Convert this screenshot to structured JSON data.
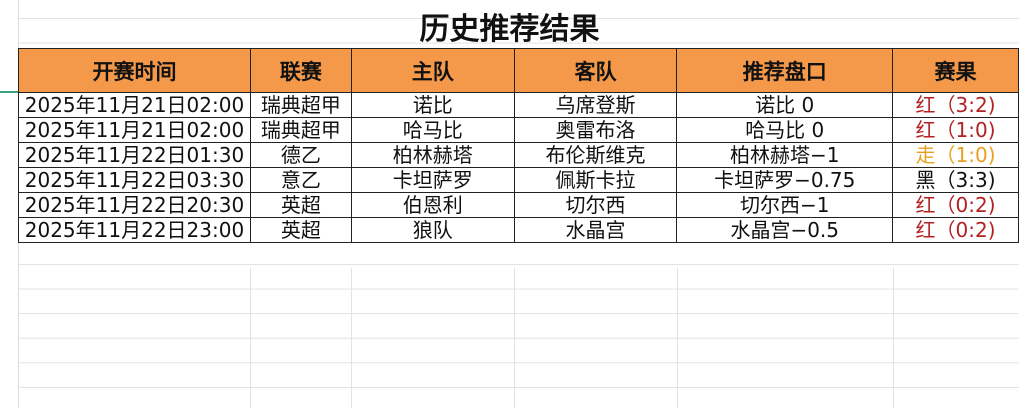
{
  "title": "历史推荐结果",
  "headers": [
    "开赛时间",
    "联赛",
    "主队",
    "客队",
    "推荐盘口",
    "赛果"
  ],
  "colors": {
    "header_bg": "#f4994a",
    "red": "#b22222",
    "push": "#e8a020",
    "black": "#111111"
  },
  "rows": [
    {
      "time": "2025年11月21日02:00",
      "league": "瑞典超甲",
      "home": "诺比",
      "away": "乌席登斯",
      "pick": "诺比 0",
      "result": "红（3:2)",
      "status": "red"
    },
    {
      "time": "2025年11月21日02:00",
      "league": "瑞典超甲",
      "home": "哈马比",
      "away": "奥雷布洛",
      "pick": "哈马比 0",
      "result": "红（1:0)",
      "status": "red"
    },
    {
      "time": "2025年11月22日01:30",
      "league": "德乙",
      "home": "柏林赫塔",
      "away": "布伦斯维克",
      "pick": "柏林赫塔−1",
      "result": "走（1:0)",
      "status": "push"
    },
    {
      "time": "2025年11月22日03:30",
      "league": "意乙",
      "home": "卡坦萨罗",
      "away": "佩斯卡拉",
      "pick": "卡坦萨罗−0.75",
      "result": "黑（3:3)",
      "status": "black"
    },
    {
      "time": "2025年11月22日20:30",
      "league": "英超",
      "home": "伯恩利",
      "away": "切尔西",
      "pick": "切尔西−1",
      "result": "红（0:2)",
      "status": "red"
    },
    {
      "time": "2025年11月22日23:00",
      "league": "英超",
      "home": "狼队",
      "away": "水晶宫",
      "pick": "水晶宫−0.5",
      "result": "红（0:2)",
      "status": "red"
    }
  ]
}
